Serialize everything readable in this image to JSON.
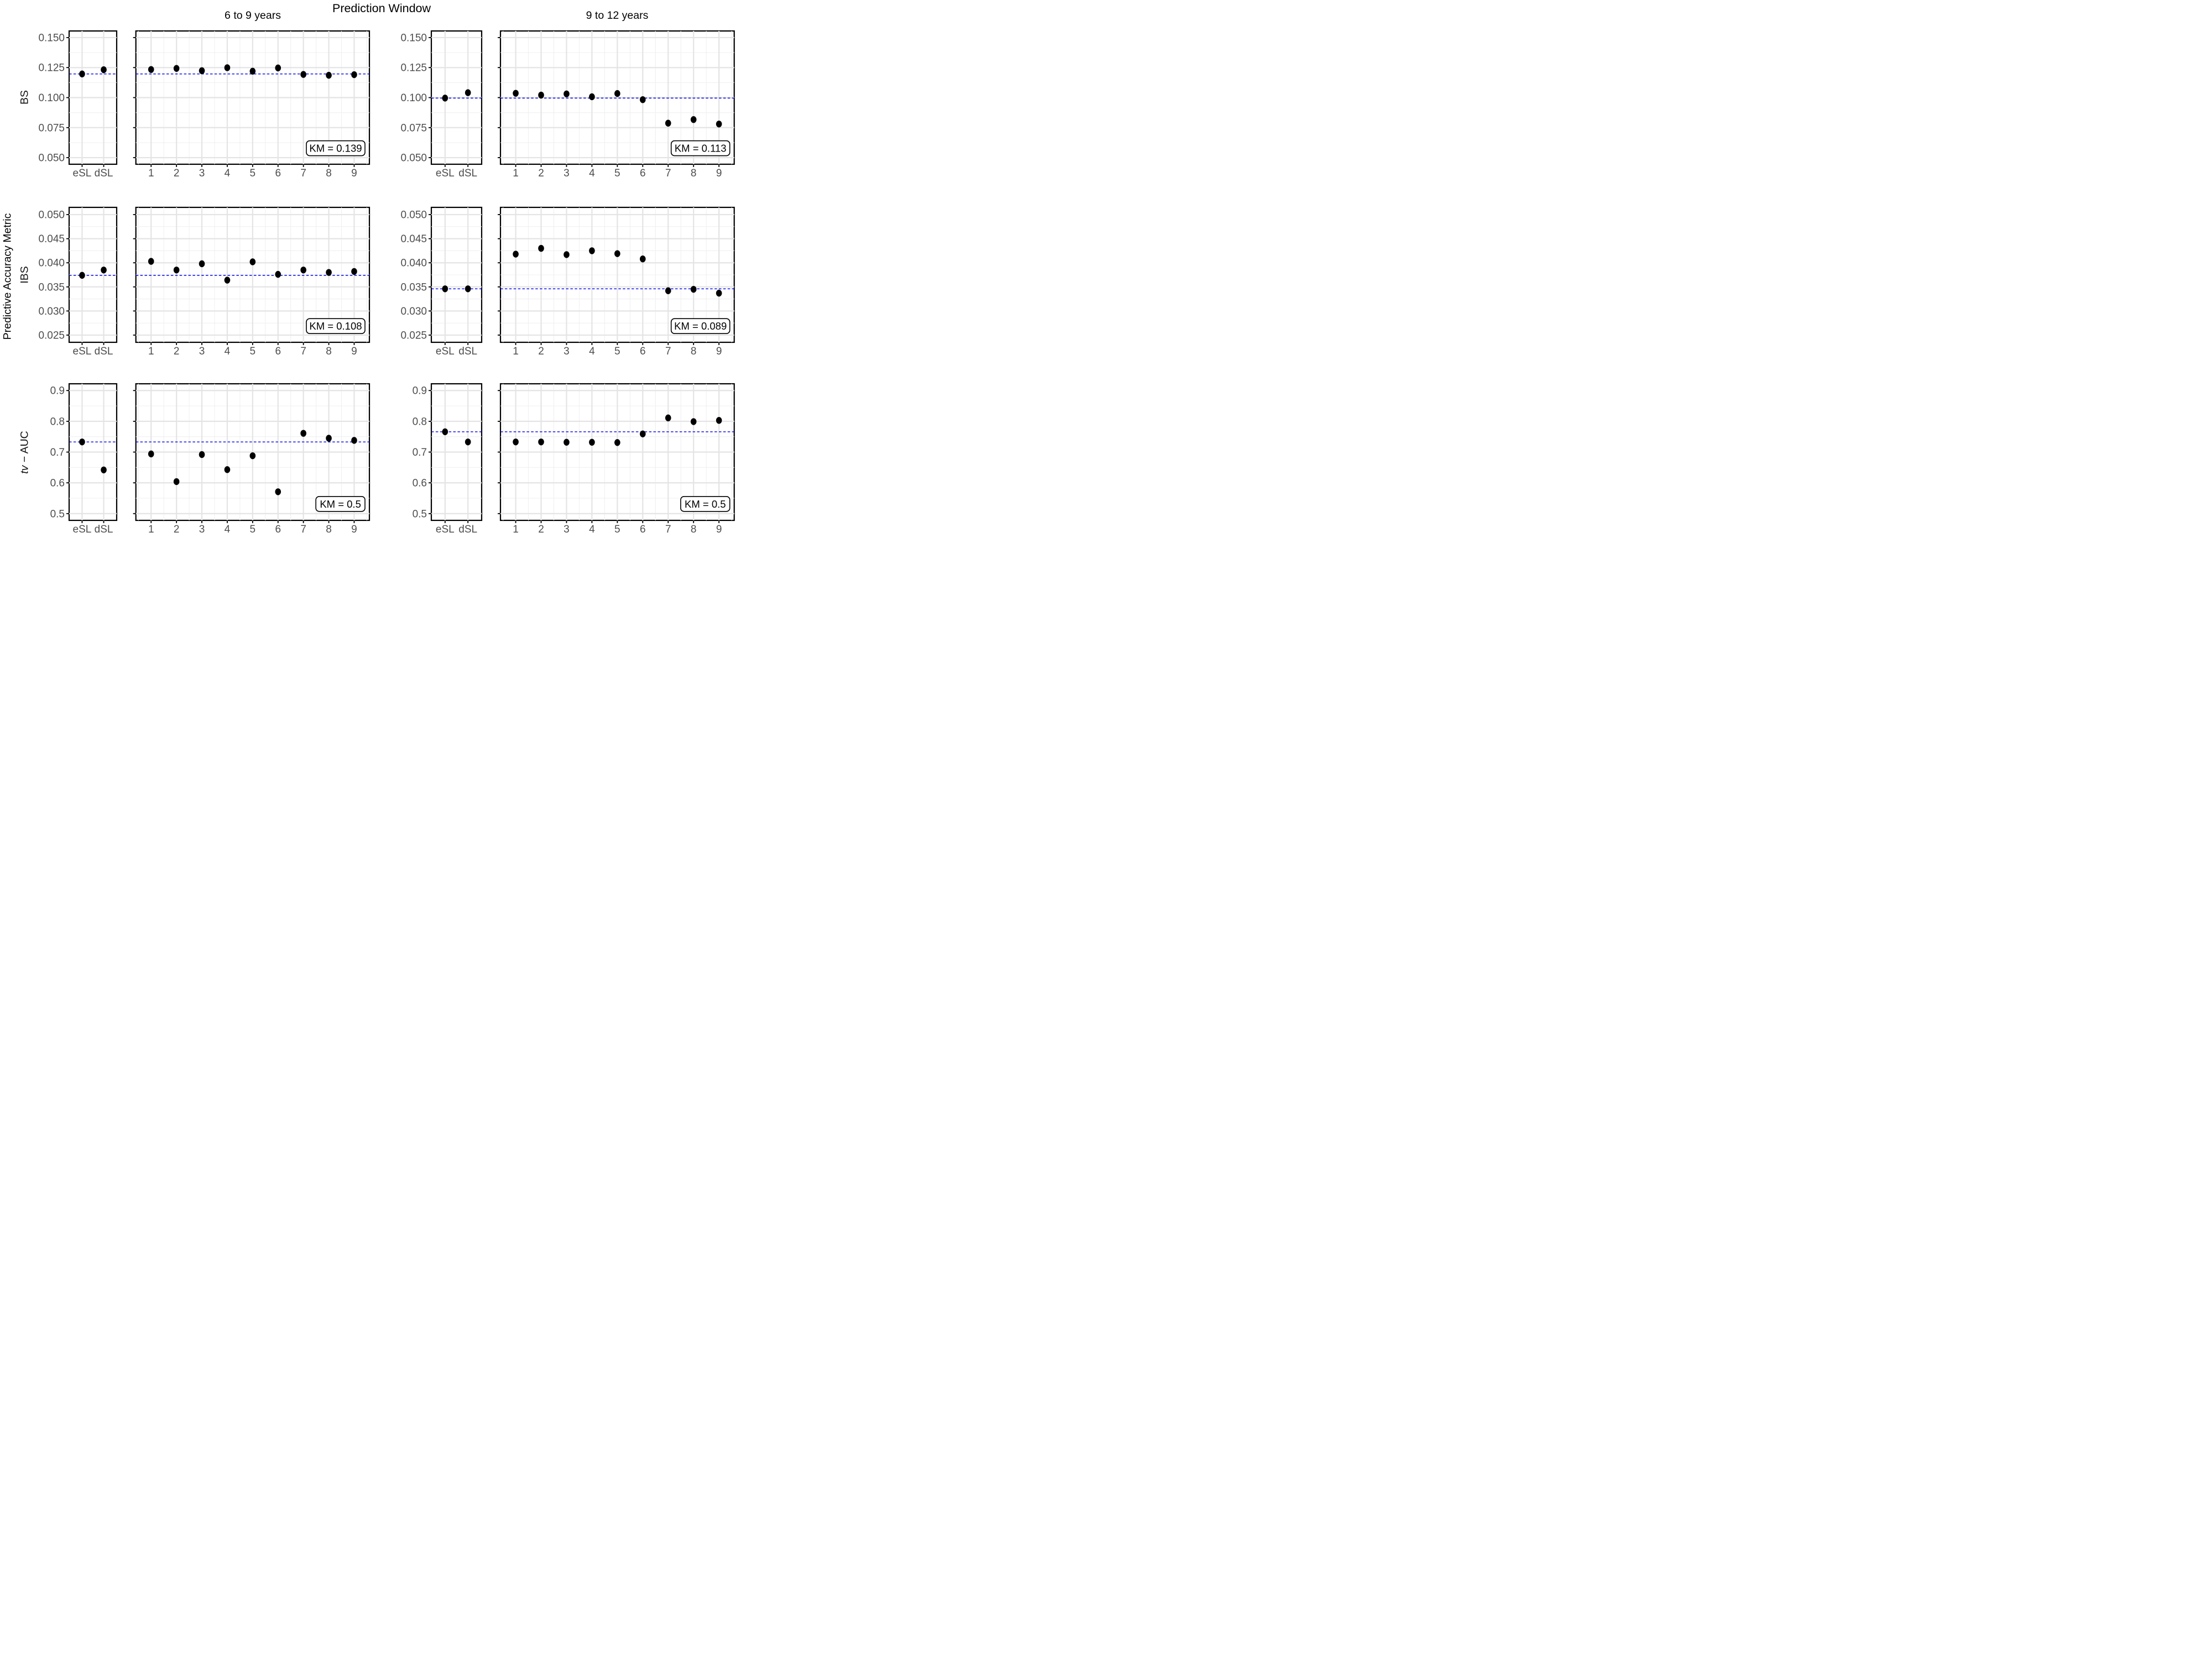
{
  "page": {
    "background": "#FFFFFF"
  },
  "chart_data": {
    "type": "scatter",
    "title": "Prediction Window",
    "col_headers": [
      "6 to 9 years",
      "9 to 12 years"
    ],
    "outer_y_label": "Predictive Accuracy Metric",
    "sl_categories": [
      "eSL",
      "dSL"
    ],
    "learner_categories": [
      "1",
      "2",
      "3",
      "4",
      "5",
      "6",
      "7",
      "8",
      "9"
    ],
    "legend": "none",
    "grid": "on",
    "style": {
      "ref_line_color": "#0000EE",
      "point_color": "#000000",
      "grid_major_color": "#E4E4E4",
      "grid_minor_color": "#F0F0F0",
      "panel_border_color": "#000000",
      "tick_label_color": "#4D4D4D",
      "km_box_fill": "#FFFFFF",
      "km_box_border": "#000000"
    },
    "rows": [
      {
        "metric_italic": "",
        "metric_rest": "BS",
        "ylim": [
          0.0445,
          0.1555
        ],
        "ticks": [
          {
            "v": 0.15,
            "label": "0.150"
          },
          {
            "v": 0.125,
            "label": "0.125"
          },
          {
            "v": 0.1,
            "label": "0.100"
          },
          {
            "v": 0.075,
            "label": "0.075"
          },
          {
            "v": 0.05,
            "label": "0.050"
          }
        ],
        "minor": [
          0.0625,
          0.0875,
          0.1125,
          0.1375
        ]
      },
      {
        "metric_italic": "",
        "metric_rest": "IBS",
        "ylim": [
          0.0235,
          0.0515
        ],
        "ticks": [
          {
            "v": 0.05,
            "label": "0.050"
          },
          {
            "v": 0.045,
            "label": "0.045"
          },
          {
            "v": 0.04,
            "label": "0.040"
          },
          {
            "v": 0.035,
            "label": "0.035"
          },
          {
            "v": 0.03,
            "label": "0.030"
          },
          {
            "v": 0.025,
            "label": "0.025"
          }
        ],
        "minor": [
          0.0275,
          0.0325,
          0.0375,
          0.0425,
          0.0475
        ]
      },
      {
        "metric_italic": "tv",
        "metric_rest": " − AUC",
        "ylim": [
          0.478,
          0.922
        ],
        "ticks": [
          {
            "v": 0.9,
            "label": "0.9"
          },
          {
            "v": 0.8,
            "label": "0.8"
          },
          {
            "v": 0.7,
            "label": "0.7"
          },
          {
            "v": 0.6,
            "label": "0.6"
          },
          {
            "v": 0.5,
            "label": "0.5"
          }
        ],
        "minor": [
          0.55,
          0.65,
          0.75,
          0.85
        ]
      }
    ],
    "panels": [
      {
        "metric": "BS",
        "window": "6 to 9 years",
        "eSL": 0.1197,
        "dSL": 0.1232,
        "ref": 0.1197,
        "learners": [
          0.1234,
          0.1243,
          0.1224,
          0.1249,
          0.122,
          0.1247,
          0.1193,
          0.1186,
          0.1191
        ],
        "km": 0.139,
        "km_label": "KM = 0.139"
      },
      {
        "metric": "BS",
        "window": "9 to 12 years",
        "eSL": 0.0996,
        "dSL": 0.1041,
        "ref": 0.0996,
        "learners": [
          0.1036,
          0.1021,
          0.1031,
          0.1007,
          0.1034,
          0.0983,
          0.0787,
          0.0817,
          0.078
        ],
        "km": 0.113,
        "km_label": "KM = 0.113"
      },
      {
        "metric": "IBS",
        "window": "6 to 9 years",
        "eSL": 0.0374,
        "dSL": 0.0385,
        "ref": 0.0374,
        "learners": [
          0.0403,
          0.0385,
          0.0398,
          0.0364,
          0.0402,
          0.0376,
          0.0385,
          0.038,
          0.0382
        ],
        "km": 0.108,
        "km_label": "KM = 0.108"
      },
      {
        "metric": "IBS",
        "window": "9 to 12 years",
        "eSL": 0.0346,
        "dSL": 0.0346,
        "ref": 0.0346,
        "learners": [
          0.0418,
          0.043,
          0.0417,
          0.0425,
          0.0419,
          0.0408,
          0.0342,
          0.0345,
          0.0337
        ],
        "km": 0.089,
        "km_label": "KM = 0.089"
      },
      {
        "metric": "tv-AUC",
        "window": "6 to 9 years",
        "eSL": 0.733,
        "dSL": 0.642,
        "ref": 0.733,
        "learners": [
          0.694,
          0.604,
          0.692,
          0.643,
          0.688,
          0.571,
          0.761,
          0.745,
          0.738
        ],
        "km": 0.5,
        "km_label": "KM = 0.5"
      },
      {
        "metric": "tv-AUC",
        "window": "9 to 12 years",
        "eSL": 0.766,
        "dSL": 0.733,
        "ref": 0.766,
        "learners": [
          0.733,
          0.733,
          0.732,
          0.732,
          0.731,
          0.759,
          0.811,
          0.799,
          0.803
        ],
        "km": 0.5,
        "km_label": "KM = 0.5"
      }
    ]
  }
}
